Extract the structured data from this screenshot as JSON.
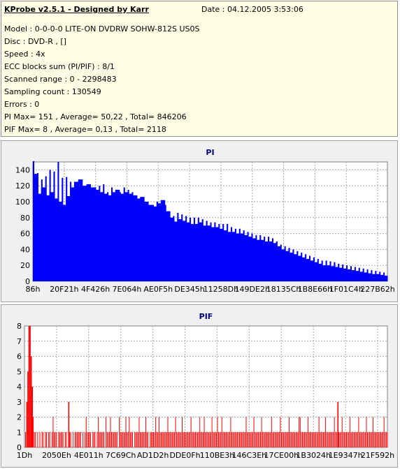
{
  "info": {
    "title": "KProbe v2.5.1 - Designed by Karr",
    "date": "Date : 04.12.2005 3:53:06",
    "lines": [
      "Model : 0-0-0-0 LITE-ON DVDRW SOHW-812S  US0S",
      "Disc : DVD-R ,  []",
      "Speed : 4x",
      "ECC blocks sum (PI/PIF) : 8/1",
      "Scanned range : 0 - 2298483",
      "Sampling count : 130549",
      "Errors : 0",
      "PI Max= 151 , Average= 50,22 , Total= 846206",
      "PIF Max= 8 , Average= 0,13 , Total= 2118"
    ]
  },
  "colors": {
    "pi": "#0000ff",
    "pif": "#ff0000",
    "title": "#00007f"
  },
  "chart_data": [
    {
      "type": "bar",
      "title": "PI",
      "ylim": [
        0,
        150
      ],
      "yticks": [
        0,
        20,
        40,
        60,
        80,
        100,
        120,
        140
      ],
      "xticks": [
        "86h",
        "20F21h",
        "4F426h",
        "7E064h",
        "AE0F5h",
        "DE345h",
        "11258Dh",
        "149DE2h",
        "18135Ch",
        "1B8E66h",
        "1F01C4h",
        "227B62h"
      ],
      "grid": true,
      "values": [
        135,
        110,
        118,
        108,
        112,
        104,
        100,
        96,
        107,
        118,
        125,
        128,
        120,
        122,
        118,
        115,
        112,
        110,
        108,
        112,
        115,
        110,
        112,
        110,
        108,
        104,
        106,
        100,
        96,
        94,
        98,
        102,
        88,
        80,
        75,
        78,
        76,
        74,
        72,
        72,
        74,
        70,
        70,
        68,
        68,
        66,
        64,
        62,
        62,
        60,
        60,
        58,
        56,
        54,
        52,
        52,
        50,
        50,
        48,
        44,
        40,
        38,
        36,
        34,
        32,
        30,
        28,
        26,
        24,
        22,
        20,
        20,
        19,
        18,
        17,
        16,
        15,
        14,
        13,
        12,
        11,
        10,
        9,
        9,
        8,
        7
      ],
      "peaks": [
        151,
        136,
        128,
        132,
        140,
        138,
        150,
        130,
        131,
        125,
        120,
        126,
        118,
        121,
        115,
        118,
        120,
        122,
        112,
        118,
        115,
        112,
        118,
        115,
        112,
        108,
        102,
        95,
        92,
        96,
        100,
        96,
        96,
        88,
        82,
        86,
        84,
        82,
        80,
        80,
        80,
        78,
        76,
        74,
        74,
        72,
        72,
        72,
        68,
        66,
        66,
        64,
        62,
        60,
        58,
        58,
        56,
        56,
        54,
        50,
        46,
        44,
        42,
        40,
        38,
        36,
        34,
        32,
        30,
        28,
        26,
        26,
        25,
        24,
        22,
        21,
        20,
        19,
        18,
        17,
        16,
        15,
        14,
        13,
        12,
        11
      ]
    },
    {
      "type": "bar",
      "title": "PIF",
      "ylim": [
        0,
        8
      ],
      "yticks": [
        0,
        1,
        2,
        3,
        4,
        5,
        6,
        7,
        8
      ],
      "xticks": [
        "1Dh",
        "2050Eh",
        "4E011h",
        "7C69Ch",
        "AD1D2h",
        "DDE0Fh",
        "110BE3h",
        "146C3Eh",
        "17CE00h",
        "1B3024h",
        "1E9347h",
        "21F592h"
      ],
      "grid": true,
      "values": [
        1,
        3,
        5,
        8,
        8,
        6,
        4,
        2,
        1,
        1,
        0,
        1,
        0,
        1,
        0,
        1,
        1,
        0,
        1,
        1,
        0,
        1,
        1,
        0,
        1,
        2,
        1,
        1,
        1,
        0,
        1,
        1,
        1,
        1,
        1,
        0,
        1,
        1,
        0,
        3,
        1,
        1,
        0,
        1,
        0,
        1,
        1,
        1,
        1,
        1,
        1,
        0,
        1,
        0,
        1,
        2,
        1,
        1,
        1,
        1,
        0,
        1,
        1,
        1,
        0,
        1,
        2,
        1,
        1,
        1,
        1,
        1,
        0,
        2,
        1,
        1,
        1,
        2,
        1,
        1,
        1,
        1,
        1,
        1,
        0,
        2,
        1,
        1,
        1,
        1,
        1,
        2,
        1,
        1,
        2,
        1,
        1,
        1,
        0,
        1,
        1,
        1,
        1,
        2,
        1,
        1,
        1,
        1,
        1,
        2,
        1,
        1,
        0,
        1,
        1,
        1,
        1,
        1,
        2,
        1,
        1,
        2,
        1,
        1,
        1,
        1,
        1,
        1,
        1,
        2,
        1,
        1,
        1,
        1,
        1,
        1,
        2,
        1,
        1,
        1,
        1,
        1,
        2,
        1,
        1,
        1,
        1,
        1,
        1,
        1,
        2,
        1,
        1,
        1,
        1,
        1,
        1,
        1,
        2,
        1,
        1,
        1,
        2,
        1,
        1,
        1,
        1,
        1,
        1,
        2,
        1,
        1,
        1,
        1,
        2,
        1,
        1,
        1,
        2,
        1,
        1,
        1,
        1,
        1,
        1,
        1,
        2,
        1,
        1,
        1,
        1,
        1,
        1,
        1,
        1,
        1,
        1,
        1,
        1,
        1,
        2,
        1,
        1,
        1,
        1,
        1,
        1,
        2,
        1,
        1,
        1,
        1,
        1,
        1,
        2,
        1,
        1,
        1,
        1,
        1,
        1,
        1,
        1,
        2,
        1,
        1,
        1,
        1,
        1,
        1,
        1,
        2,
        1,
        1,
        1,
        1,
        1,
        1,
        1,
        2,
        1,
        1,
        1,
        1,
        1,
        1,
        1,
        1,
        2,
        2,
        1,
        1,
        1,
        1,
        1,
        1,
        2,
        1,
        1,
        1,
        1,
        1,
        1,
        1,
        1,
        1,
        2,
        1,
        1,
        1,
        1,
        1,
        2,
        1,
        1,
        1,
        1,
        1,
        1,
        1,
        2,
        1,
        1,
        3,
        1,
        1,
        1,
        2,
        1,
        1,
        1,
        1,
        1,
        1,
        2,
        1,
        1,
        1,
        1,
        1,
        1,
        1,
        2,
        1,
        1,
        1,
        1,
        1,
        1,
        2,
        1,
        1,
        1,
        1,
        1,
        2,
        1,
        1,
        1,
        1,
        1,
        1,
        1,
        1,
        1,
        2,
        1,
        1,
        1
      ]
    }
  ]
}
